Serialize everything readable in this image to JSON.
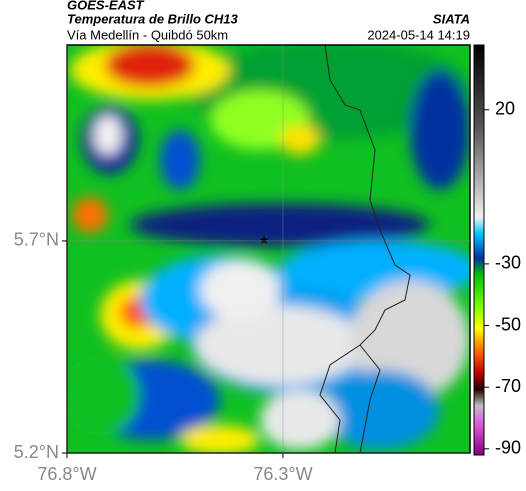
{
  "header": {
    "title": "GOES-EAST",
    "subtitle": "Temperatura de Brillo CH13",
    "source": "SIATA",
    "location": "Vía Medellín - Quibdó 50km",
    "timestamp": "2024-05-14 14:19"
  },
  "map": {
    "xlim": [
      -76.8,
      -75.867
    ],
    "ylim": [
      5.2,
      6.162
    ],
    "xticks": [
      {
        "value": -76.8,
        "label": "76.8°W"
      },
      {
        "value": -76.3,
        "label": "76.3°W"
      }
    ],
    "yticks": [
      {
        "value": 5.2,
        "label": "5.2°N"
      },
      {
        "value": 5.7,
        "label": "5.7°N"
      }
    ],
    "grid": true
  },
  "colorbar": {
    "lim": [
      -92,
      41
    ],
    "ticks": [
      20,
      -30,
      -50,
      -70,
      -90
    ]
  }
}
